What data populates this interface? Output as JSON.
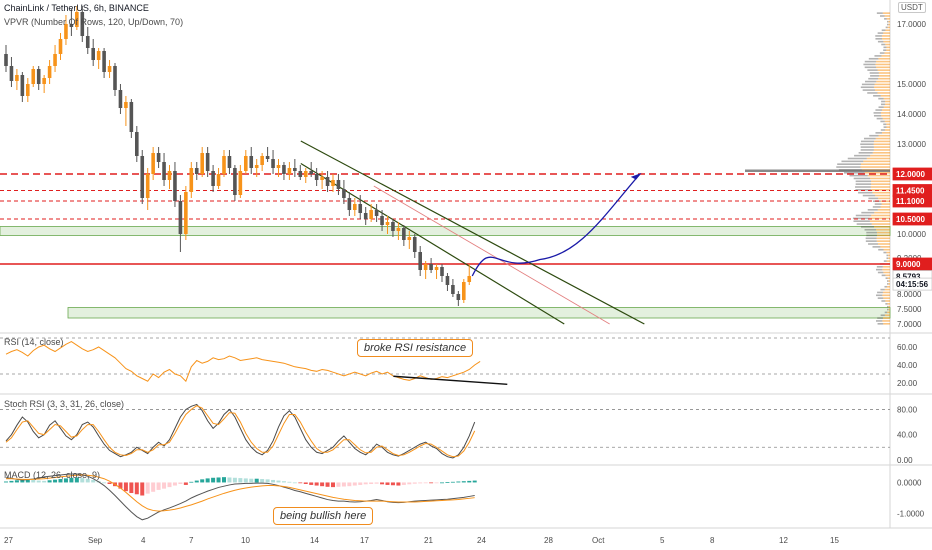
{
  "header": {
    "symbol_line": "ChainLink / TetherUS, 6h, BINANCE",
    "vpvr_line": "VPVR (Number Of Rows, 120, Up/Down, 70)",
    "currency": "USDT"
  },
  "colors": {
    "up": "#f7931a",
    "down": "#555555",
    "resistance": "#e01e1e",
    "zone_fill": "#e3f0de",
    "zone_border": "#6aa84f",
    "channel": "#2d4a0f",
    "channel_mid": "#e38080",
    "projection": "#1a1aa8",
    "rsi": "#f7931a",
    "stoch_k": "#4a4a4a",
    "stoch_d": "#f7931a",
    "macd_pos": "#26a69a",
    "macd_pos_light": "#b2dfdb",
    "macd_neg": "#ef5350",
    "macd_neg_light": "#ffcdd2",
    "label_red": "#e01e1e",
    "label_gray": "#8a8a8a",
    "label_dark": "#131722"
  },
  "annotations": {
    "rsi": "broke RSI resistance",
    "macd": "being bullish here"
  },
  "chart_data": [
    {
      "type": "candlestick",
      "title": "ChainLink / TetherUS, 6h, BINANCE",
      "y_axis_ticks": [
        17.0,
        15.0,
        14.0,
        13.0,
        12.0,
        10.0,
        9.2,
        8.0,
        7.5,
        7.0
      ],
      "price_labels": [
        {
          "value": "12.0000",
          "style": "red"
        },
        {
          "value": "11.4500",
          "style": "red"
        },
        {
          "value": "11.1000",
          "style": "red"
        },
        {
          "value": "10.5000",
          "style": "red"
        },
        {
          "value": "9.0000",
          "style": "red"
        },
        {
          "value": "8.5793",
          "style": "gray"
        },
        {
          "value": "04:15:56",
          "style": "dark"
        }
      ],
      "resistance_levels": [
        12.0,
        11.45,
        11.1,
        10.5
      ],
      "key_level": 9.0,
      "support_zones": [
        [
          9.95,
          10.25
        ],
        [
          7.2,
          7.55
        ]
      ],
      "ohlc": [
        [
          16.0,
          16.3,
          15.4,
          15.6
        ],
        [
          15.6,
          15.9,
          14.9,
          15.1
        ],
        [
          15.1,
          15.5,
          14.8,
          15.3
        ],
        [
          15.3,
          15.4,
          14.4,
          14.6
        ],
        [
          14.6,
          15.2,
          14.4,
          15.0
        ],
        [
          15.0,
          15.6,
          14.9,
          15.5
        ],
        [
          15.5,
          15.6,
          14.8,
          15.0
        ],
        [
          15.0,
          15.3,
          14.7,
          15.2
        ],
        [
          15.2,
          15.8,
          15.0,
          15.6
        ],
        [
          15.6,
          16.3,
          15.4,
          16.0
        ],
        [
          16.0,
          16.7,
          15.8,
          16.5
        ],
        [
          16.5,
          17.3,
          16.3,
          17.0
        ],
        [
          17.0,
          17.5,
          16.6,
          16.9
        ],
        [
          16.9,
          17.6,
          16.8,
          17.4
        ],
        [
          17.4,
          17.6,
          16.4,
          16.6
        ],
        [
          16.6,
          16.9,
          16.0,
          16.2
        ],
        [
          16.2,
          16.5,
          15.6,
          15.8
        ],
        [
          15.8,
          16.2,
          15.5,
          16.1
        ],
        [
          16.1,
          16.2,
          15.2,
          15.4
        ],
        [
          15.4,
          15.8,
          15.2,
          15.6
        ],
        [
          15.6,
          15.7,
          14.6,
          14.8
        ],
        [
          14.8,
          15.0,
          14.0,
          14.2
        ],
        [
          14.2,
          14.6,
          13.6,
          14.4
        ],
        [
          14.4,
          14.5,
          13.2,
          13.4
        ],
        [
          13.4,
          13.6,
          12.4,
          12.6
        ],
        [
          12.6,
          12.8,
          11.0,
          11.2
        ],
        [
          11.2,
          12.2,
          10.8,
          12.0
        ],
        [
          12.0,
          12.9,
          11.8,
          12.7
        ],
        [
          12.7,
          12.9,
          12.2,
          12.4
        ],
        [
          12.4,
          12.7,
          11.6,
          11.8
        ],
        [
          11.8,
          12.3,
          11.5,
          12.1
        ],
        [
          12.1,
          12.4,
          10.9,
          11.1
        ],
        [
          11.1,
          11.3,
          9.4,
          10.0
        ],
        [
          10.0,
          11.6,
          9.8,
          11.4
        ],
        [
          11.4,
          12.4,
          11.2,
          12.2
        ],
        [
          12.2,
          12.4,
          11.8,
          12.0
        ],
        [
          12.0,
          12.9,
          11.9,
          12.7
        ],
        [
          12.7,
          12.9,
          11.9,
          12.1
        ],
        [
          12.1,
          12.3,
          11.4,
          11.6
        ],
        [
          11.6,
          12.2,
          11.5,
          12.0
        ],
        [
          12.0,
          12.8,
          11.9,
          12.6
        ],
        [
          12.6,
          12.8,
          12.0,
          12.2
        ],
        [
          12.2,
          12.3,
          11.1,
          11.3
        ],
        [
          11.3,
          12.3,
          11.2,
          12.1
        ],
        [
          12.1,
          12.8,
          12.0,
          12.6
        ],
        [
          12.6,
          12.9,
          12.0,
          12.2
        ],
        [
          12.2,
          12.5,
          11.9,
          12.3
        ],
        [
          12.3,
          12.7,
          12.1,
          12.6
        ],
        [
          12.6,
          12.9,
          12.4,
          12.5
        ],
        [
          12.5,
          12.8,
          12.0,
          12.2
        ],
        [
          12.2,
          12.5,
          11.9,
          12.3
        ],
        [
          12.3,
          12.4,
          11.8,
          12.0
        ],
        [
          12.0,
          12.4,
          11.8,
          12.2
        ],
        [
          12.2,
          12.5,
          11.9,
          12.1
        ],
        [
          12.1,
          12.3,
          11.8,
          11.9
        ],
        [
          11.9,
          12.2,
          11.7,
          12.1
        ],
        [
          12.1,
          12.4,
          11.9,
          12.0
        ],
        [
          12.0,
          12.2,
          11.6,
          11.8
        ],
        [
          11.8,
          12.1,
          11.5,
          11.9
        ],
        [
          11.9,
          12.1,
          11.4,
          11.6
        ],
        [
          11.6,
          12.0,
          11.4,
          11.8
        ],
        [
          11.8,
          12.0,
          11.3,
          11.5
        ],
        [
          11.5,
          11.8,
          11.0,
          11.2
        ],
        [
          11.2,
          11.4,
          10.6,
          10.8
        ],
        [
          10.8,
          11.2,
          10.6,
          11.0
        ],
        [
          11.0,
          11.3,
          10.5,
          10.7
        ],
        [
          10.7,
          10.9,
          10.3,
          10.5
        ],
        [
          10.5,
          11.0,
          10.4,
          10.8
        ],
        [
          10.8,
          11.0,
          10.4,
          10.6
        ],
        [
          10.6,
          10.8,
          10.1,
          10.3
        ],
        [
          10.3,
          10.6,
          10.0,
          10.4
        ],
        [
          10.4,
          10.5,
          9.9,
          10.1
        ],
        [
          10.1,
          10.4,
          9.8,
          10.2
        ],
        [
          10.2,
          10.3,
          9.6,
          9.8
        ],
        [
          9.8,
          10.1,
          9.5,
          9.9
        ],
        [
          9.9,
          10.0,
          9.2,
          9.4
        ],
        [
          9.4,
          9.6,
          8.6,
          8.8
        ],
        [
          8.8,
          9.1,
          8.5,
          9.0
        ],
        [
          9.0,
          9.2,
          8.7,
          8.8
        ],
        [
          8.8,
          9.0,
          8.5,
          8.9
        ],
        [
          8.9,
          9.0,
          8.4,
          8.6
        ],
        [
          8.6,
          8.7,
          8.1,
          8.3
        ],
        [
          8.3,
          8.5,
          7.9,
          8.0
        ],
        [
          8.0,
          8.1,
          7.6,
          7.8
        ],
        [
          7.8,
          8.5,
          7.7,
          8.4
        ],
        [
          8.4,
          9.0,
          8.3,
          8.6
        ]
      ],
      "channel_upper": [
        [
          0.338,
          13.1
        ],
        [
          0.724,
          7.0
        ]
      ],
      "channel_lower": [
        [
          0.338,
          12.35
        ],
        [
          0.634,
          7.0
        ]
      ],
      "channel_mid": [
        [
          0.42,
          11.6
        ],
        [
          0.685,
          7.0
        ]
      ],
      "projection_path": [
        [
          8.6,
          8.6
        ],
        [
          9.35,
          9.15
        ],
        [
          9.35,
          12.0
        ]
      ],
      "x_axis_labels": [
        "27",
        "Sep",
        "4",
        "7",
        "10",
        "14",
        "17",
        "21",
        "24",
        "28",
        "Oct",
        "5",
        "8",
        "12",
        "15"
      ]
    },
    {
      "type": "line",
      "title": "RSI (14, close)",
      "ylim": [
        10,
        70
      ],
      "y_ticks": [
        60.0,
        40.0,
        20.0
      ],
      "bands": [
        70,
        30
      ],
      "series": [
        {
          "values": [
            52,
            55,
            57,
            54,
            50,
            56,
            60,
            62,
            58,
            55,
            59,
            63,
            66,
            62,
            58,
            55,
            57,
            60,
            56,
            52,
            48,
            42,
            36,
            33,
            28,
            25,
            22,
            30,
            26,
            32,
            35,
            30,
            28,
            22,
            38,
            45,
            42,
            44,
            48,
            46,
            47,
            50,
            48,
            45,
            46,
            47,
            48,
            46,
            45,
            44,
            43,
            42,
            40,
            38,
            37,
            36,
            34,
            33,
            35,
            34,
            32,
            30,
            28,
            30,
            32,
            30,
            28,
            31,
            33,
            30,
            32,
            28,
            26,
            24,
            23,
            25,
            28,
            26,
            24,
            25,
            27,
            26,
            28,
            30,
            32,
            35,
            40,
            44
          ]
        }
      ],
      "resistance_line": [
        [
          0.442,
          27.5
        ],
        [
          0.57,
          18.5
        ]
      ]
    },
    {
      "type": "line",
      "title": "Stoch RSI (3, 3, 31, 26, close)",
      "ylim": [
        -5,
        95
      ],
      "y_ticks": [
        80.0,
        40.0,
        0.0
      ],
      "bands": [
        80,
        20
      ],
      "series": [
        {
          "values": [
            30,
            40,
            55,
            68,
            60,
            45,
            35,
            40,
            55,
            62,
            50,
            38,
            32,
            40,
            56,
            60,
            52,
            38,
            25,
            15,
            10,
            5,
            8,
            12,
            20,
            15,
            10,
            20,
            28,
            22,
            32,
            50,
            68,
            80,
            85,
            88,
            78,
            62,
            50,
            58,
            72,
            80,
            68,
            50,
            32,
            20,
            12,
            8,
            15,
            30,
            52,
            70,
            78,
            68,
            50,
            32,
            20,
            12,
            10,
            15,
            20,
            30,
            38,
            28,
            18,
            12,
            8,
            15,
            25,
            20,
            12,
            8,
            6,
            10,
            15,
            20,
            25,
            28,
            22,
            18,
            10,
            5,
            3,
            8,
            20,
            38,
            60
          ]
        },
        {
          "values": [
            28,
            35,
            48,
            60,
            62,
            52,
            42,
            40,
            48,
            56,
            54,
            45,
            36,
            38,
            48,
            56,
            56,
            45,
            32,
            20,
            12,
            8,
            7,
            10,
            16,
            16,
            12,
            16,
            24,
            24,
            28,
            42,
            58,
            72,
            80,
            86,
            82,
            70,
            58,
            56,
            65,
            75,
            74,
            60,
            42,
            28,
            18,
            12,
            12,
            22,
            40,
            58,
            72,
            72,
            60,
            44,
            30,
            18,
            12,
            12,
            16,
            24,
            32,
            32,
            24,
            16,
            11,
            12,
            20,
            22,
            16,
            10,
            7,
            8,
            12,
            17,
            22,
            26,
            25,
            20,
            14,
            8,
            5,
            6,
            14,
            28,
            46
          ]
        }
      ]
    },
    {
      "type": "histogram",
      "title": "MACD (12, 26, close, 9)",
      "ylim": [
        -1.4,
        0.4
      ],
      "y_ticks": [
        0.0,
        -1.0
      ],
      "histogram": [
        0.03,
        0.05,
        0.07,
        0.08,
        0.09,
        0.08,
        0.06,
        0.05,
        0.07,
        0.09,
        0.11,
        0.13,
        0.15,
        0.16,
        0.14,
        0.12,
        0.08,
        0.04,
        0.0,
        -0.05,
        -0.12,
        -0.2,
        -0.28,
        -0.34,
        -0.38,
        -0.42,
        -0.36,
        -0.3,
        -0.24,
        -0.2,
        -0.15,
        -0.1,
        -0.05,
        -0.08,
        0.02,
        0.06,
        0.1,
        0.13,
        0.15,
        0.16,
        0.17,
        0.16,
        0.15,
        0.14,
        0.13,
        0.12,
        0.12,
        0.11,
        0.1,
        0.08,
        0.06,
        0.04,
        0.02,
        0.0,
        -0.02,
        -0.05,
        -0.08,
        -0.1,
        -0.12,
        -0.14,
        -0.15,
        -0.14,
        -0.13,
        -0.12,
        -0.1,
        -0.08,
        -0.06,
        -0.05,
        -0.04,
        -0.06,
        -0.08,
        -0.09,
        -0.1,
        -0.08,
        -0.06,
        -0.04,
        -0.03,
        -0.02,
        -0.02,
        -0.01,
        0.0,
        0.01,
        0.02,
        0.03,
        0.04,
        0.05,
        0.06
      ],
      "macd": [
        0.15,
        0.13,
        0.1,
        0.08,
        0.09,
        0.11,
        0.14,
        0.18,
        0.2,
        0.22,
        0.24,
        0.26,
        0.27,
        0.27,
        0.25,
        0.2,
        0.12,
        0.02,
        -0.1,
        -0.25,
        -0.42,
        -0.6,
        -0.78,
        -0.95,
        -1.1,
        -1.2,
        -1.15,
        -1.05,
        -0.95,
        -0.88,
        -0.82,
        -0.75,
        -0.68,
        -0.6,
        -0.5,
        -0.42,
        -0.35,
        -0.28,
        -0.22,
        -0.16,
        -0.12,
        -0.08,
        -0.05,
        -0.04,
        -0.03,
        -0.03,
        -0.02,
        -0.02,
        -0.03,
        -0.06,
        -0.1,
        -0.15,
        -0.2,
        -0.26,
        -0.3,
        -0.35,
        -0.4,
        -0.45,
        -0.5,
        -0.55,
        -0.58,
        -0.6,
        -0.6,
        -0.62,
        -0.63,
        -0.62,
        -0.6,
        -0.58,
        -0.55,
        -0.58,
        -0.62,
        -0.64,
        -0.65,
        -0.64,
        -0.62,
        -0.6,
        -0.59,
        -0.58,
        -0.57,
        -0.56,
        -0.55,
        -0.54,
        -0.52,
        -0.5,
        -0.48,
        -0.45,
        -0.42
      ],
      "signal": [
        0.12,
        0.12,
        0.11,
        0.1,
        0.1,
        0.1,
        0.11,
        0.12,
        0.14,
        0.16,
        0.18,
        0.2,
        0.22,
        0.23,
        0.24,
        0.23,
        0.21,
        0.17,
        0.12,
        0.04,
        -0.06,
        -0.18,
        -0.32,
        -0.47,
        -0.62,
        -0.75,
        -0.85,
        -0.9,
        -0.92,
        -0.91,
        -0.89,
        -0.86,
        -0.82,
        -0.77,
        -0.72,
        -0.66,
        -0.6,
        -0.53,
        -0.47,
        -0.41,
        -0.35,
        -0.3,
        -0.25,
        -0.21,
        -0.18,
        -0.15,
        -0.13,
        -0.11,
        -0.1,
        -0.1,
        -0.11,
        -0.13,
        -0.16,
        -0.2,
        -0.24,
        -0.28,
        -0.32,
        -0.36,
        -0.4,
        -0.44,
        -0.48,
        -0.51,
        -0.54,
        -0.56,
        -0.58,
        -0.59,
        -0.6,
        -0.6,
        -0.6,
        -0.6,
        -0.61,
        -0.62,
        -0.63,
        -0.63,
        -0.63,
        -0.63,
        -0.62,
        -0.61,
        -0.6,
        -0.59,
        -0.58,
        -0.57,
        -0.56,
        -0.55,
        -0.53,
        -0.51,
        -0.49
      ]
    }
  ]
}
